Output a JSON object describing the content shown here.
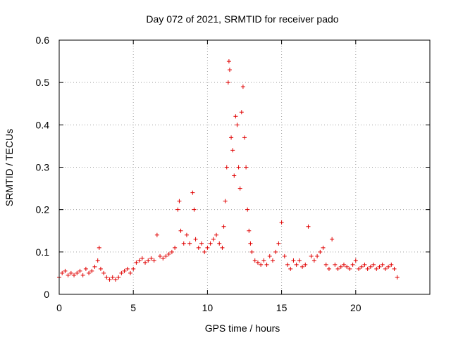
{
  "chart_data": {
    "type": "scatter",
    "title": "Day 072 of 2021, SRMTID for receiver pado",
    "xlabel": "GPS time / hours",
    "ylabel": "SRMTID / TECUs",
    "xlim": [
      0,
      25
    ],
    "ylim": [
      0,
      0.6
    ],
    "x_ticks": [
      0,
      5,
      10,
      15,
      20
    ],
    "x_tick_labels": [
      "0",
      "5",
      "10",
      "15",
      "20"
    ],
    "y_ticks": [
      0,
      0.1,
      0.2,
      0.3,
      0.4,
      0.5,
      0.6
    ],
    "y_tick_labels": [
      "0",
      "0.1",
      "0.2",
      "0.3",
      "0.4",
      "0.5",
      "0.6"
    ],
    "grid": true,
    "marker": "plus",
    "color": "#e00000",
    "series": [
      {
        "name": "SRMTID",
        "points": [
          [
            0.0,
            0.04
          ],
          [
            0.2,
            0.05
          ],
          [
            0.4,
            0.055
          ],
          [
            0.6,
            0.045
          ],
          [
            0.8,
            0.05
          ],
          [
            1.0,
            0.045
          ],
          [
            1.2,
            0.05
          ],
          [
            1.4,
            0.055
          ],
          [
            1.6,
            0.045
          ],
          [
            1.8,
            0.06
          ],
          [
            2.0,
            0.05
          ],
          [
            2.2,
            0.055
          ],
          [
            2.4,
            0.065
          ],
          [
            2.6,
            0.08
          ],
          [
            2.7,
            0.11
          ],
          [
            2.8,
            0.06
          ],
          [
            3.0,
            0.05
          ],
          [
            3.2,
            0.04
          ],
          [
            3.4,
            0.035
          ],
          [
            3.6,
            0.04
          ],
          [
            3.8,
            0.035
          ],
          [
            4.0,
            0.04
          ],
          [
            4.2,
            0.05
          ],
          [
            4.4,
            0.055
          ],
          [
            4.6,
            0.06
          ],
          [
            4.8,
            0.05
          ],
          [
            5.0,
            0.06
          ],
          [
            5.2,
            0.075
          ],
          [
            5.4,
            0.08
          ],
          [
            5.6,
            0.085
          ],
          [
            5.8,
            0.075
          ],
          [
            6.0,
            0.08
          ],
          [
            6.2,
            0.085
          ],
          [
            6.4,
            0.08
          ],
          [
            6.6,
            0.14
          ],
          [
            6.8,
            0.09
          ],
          [
            7.0,
            0.085
          ],
          [
            7.2,
            0.09
          ],
          [
            7.4,
            0.095
          ],
          [
            7.6,
            0.1
          ],
          [
            7.8,
            0.11
          ],
          [
            8.0,
            0.2
          ],
          [
            8.1,
            0.22
          ],
          [
            8.2,
            0.15
          ],
          [
            8.4,
            0.12
          ],
          [
            8.6,
            0.14
          ],
          [
            8.8,
            0.12
          ],
          [
            9.0,
            0.24
          ],
          [
            9.1,
            0.2
          ],
          [
            9.2,
            0.13
          ],
          [
            9.4,
            0.11
          ],
          [
            9.6,
            0.12
          ],
          [
            9.8,
            0.1
          ],
          [
            10.0,
            0.11
          ],
          [
            10.2,
            0.12
          ],
          [
            10.4,
            0.13
          ],
          [
            10.6,
            0.14
          ],
          [
            10.8,
            0.12
          ],
          [
            11.0,
            0.11
          ],
          [
            11.1,
            0.16
          ],
          [
            11.2,
            0.22
          ],
          [
            11.3,
            0.3
          ],
          [
            11.4,
            0.5
          ],
          [
            11.45,
            0.55
          ],
          [
            11.5,
            0.53
          ],
          [
            11.6,
            0.37
          ],
          [
            11.7,
            0.34
          ],
          [
            11.8,
            0.28
          ],
          [
            11.9,
            0.42
          ],
          [
            12.0,
            0.4
          ],
          [
            12.1,
            0.3
          ],
          [
            12.2,
            0.25
          ],
          [
            12.3,
            0.43
          ],
          [
            12.4,
            0.49
          ],
          [
            12.5,
            0.37
          ],
          [
            12.6,
            0.3
          ],
          [
            12.7,
            0.2
          ],
          [
            12.8,
            0.15
          ],
          [
            12.9,
            0.12
          ],
          [
            13.0,
            0.1
          ],
          [
            13.2,
            0.08
          ],
          [
            13.4,
            0.075
          ],
          [
            13.6,
            0.07
          ],
          [
            13.8,
            0.08
          ],
          [
            14.0,
            0.07
          ],
          [
            14.2,
            0.09
          ],
          [
            14.4,
            0.08
          ],
          [
            14.6,
            0.1
          ],
          [
            14.8,
            0.12
          ],
          [
            15.0,
            0.17
          ],
          [
            15.2,
            0.09
          ],
          [
            15.4,
            0.07
          ],
          [
            15.6,
            0.06
          ],
          [
            15.8,
            0.08
          ],
          [
            16.0,
            0.07
          ],
          [
            16.2,
            0.08
          ],
          [
            16.4,
            0.065
          ],
          [
            16.6,
            0.07
          ],
          [
            16.8,
            0.16
          ],
          [
            17.0,
            0.09
          ],
          [
            17.2,
            0.08
          ],
          [
            17.4,
            0.09
          ],
          [
            17.6,
            0.1
          ],
          [
            17.8,
            0.11
          ],
          [
            18.0,
            0.07
          ],
          [
            18.2,
            0.06
          ],
          [
            18.4,
            0.13
          ],
          [
            18.6,
            0.07
          ],
          [
            18.8,
            0.06
          ],
          [
            19.0,
            0.065
          ],
          [
            19.2,
            0.07
          ],
          [
            19.4,
            0.065
          ],
          [
            19.6,
            0.06
          ],
          [
            19.8,
            0.07
          ],
          [
            20.0,
            0.08
          ],
          [
            20.2,
            0.06
          ],
          [
            20.4,
            0.065
          ],
          [
            20.6,
            0.07
          ],
          [
            20.8,
            0.06
          ],
          [
            21.0,
            0.065
          ],
          [
            21.2,
            0.07
          ],
          [
            21.4,
            0.06
          ],
          [
            21.6,
            0.065
          ],
          [
            21.8,
            0.07
          ],
          [
            22.0,
            0.06
          ],
          [
            22.2,
            0.065
          ],
          [
            22.4,
            0.07
          ],
          [
            22.6,
            0.06
          ],
          [
            22.8,
            0.04
          ]
        ]
      }
    ]
  }
}
